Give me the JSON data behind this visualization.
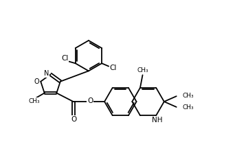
{
  "bg_color": "#ffffff",
  "line_color": "#000000",
  "lw": 1.3,
  "fs": 7.0,
  "xlim": [
    0,
    10
  ],
  "ylim": [
    0,
    6.6
  ],
  "figsize": [
    3.58,
    2.36
  ],
  "dpi": 100
}
